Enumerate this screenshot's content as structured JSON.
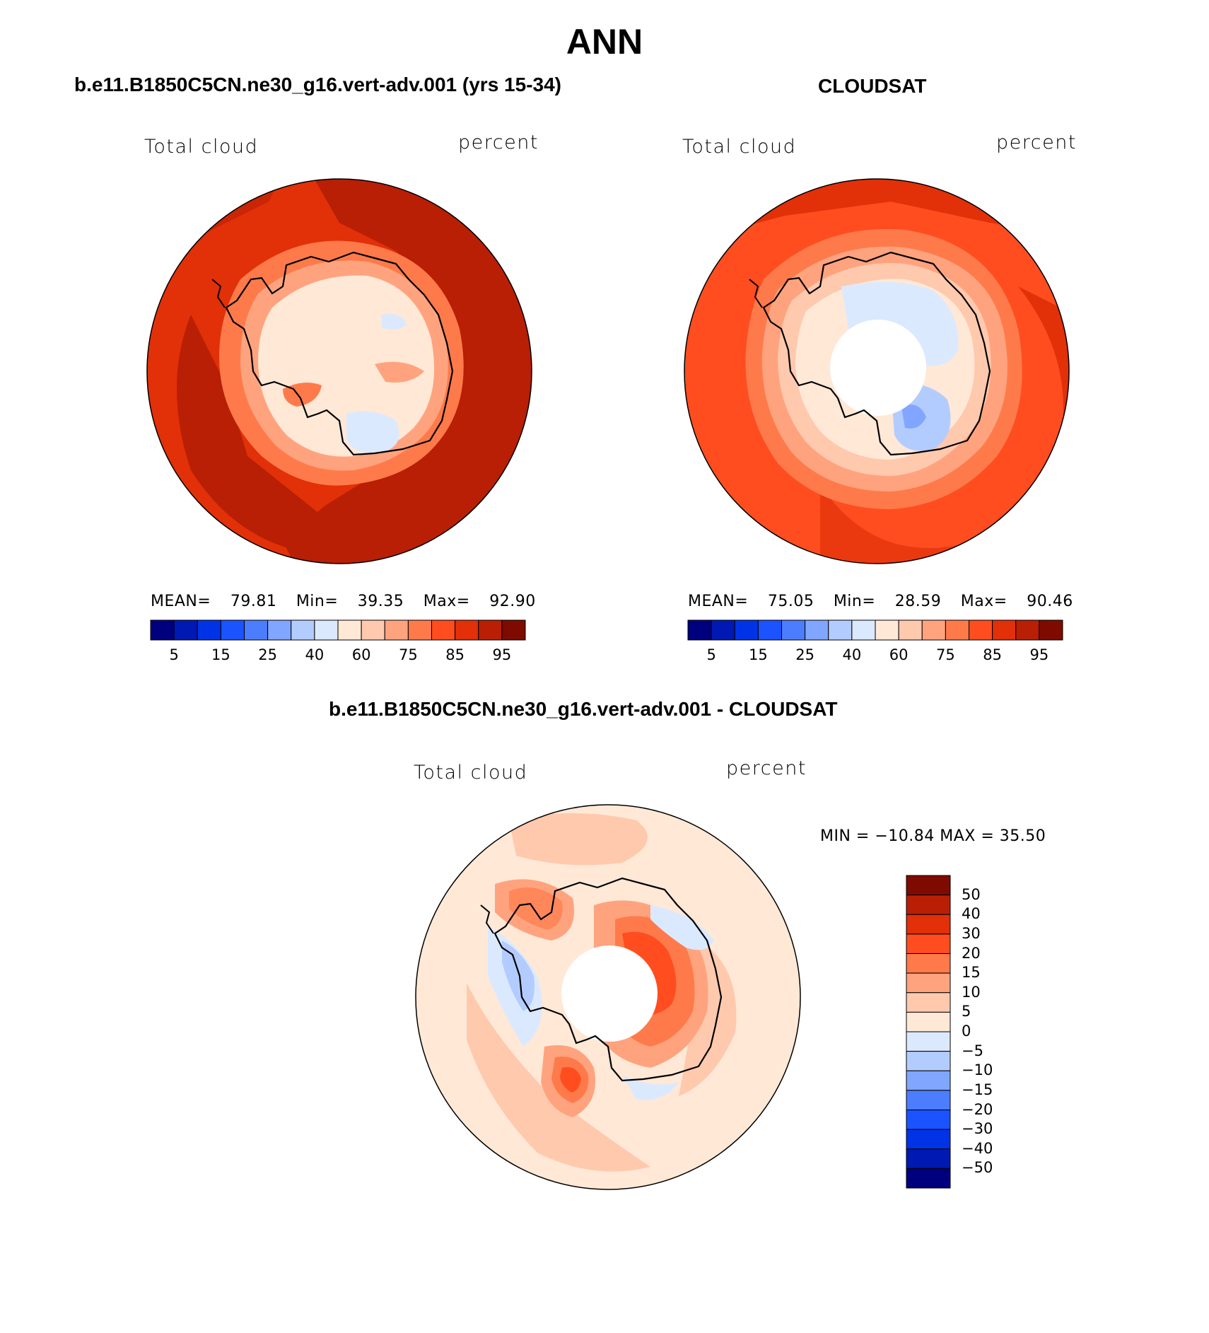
{
  "main_title": "ANN",
  "panels": {
    "model": {
      "title": "b.e11.B1850C5CN.ne30_g16.vert-adv.001 (yrs 15-34)",
      "left_label": "Total cloud",
      "right_label": "percent",
      "stats": {
        "mean_label": "MEAN=",
        "mean": "79.81",
        "min_label": "Min=",
        "min": "39.35",
        "max_label": "Max=",
        "max": "92.90"
      }
    },
    "obs": {
      "title": "CLOUDSAT",
      "left_label": "Total cloud",
      "right_label": "percent",
      "stats": {
        "mean_label": "MEAN=",
        "mean": "75.05",
        "min_label": "Min=",
        "min": "28.59",
        "max_label": "Max=",
        "max": "90.46"
      }
    },
    "diff": {
      "title": "b.e11.B1850C5CN.ne30_g16.vert-adv.001 - CLOUDSAT",
      "left_label": "Total cloud",
      "right_label": "percent",
      "minmax": "MIN = −10.84  MAX =   35.50"
    }
  },
  "colorbar_abs": {
    "colors": [
      "#00007f",
      "#0019b3",
      "#0033e6",
      "#1a53ff",
      "#4d7dff",
      "#80a6ff",
      "#b3ccff",
      "#dbe9ff",
      "#ffe8d6",
      "#ffc9ae",
      "#ffa37f",
      "#ff7a4a",
      "#ff4d1f",
      "#e23008",
      "#b81f04",
      "#7f0a00"
    ],
    "tick_labels": [
      "5",
      "15",
      "25",
      "40",
      "60",
      "75",
      "85",
      "95"
    ]
  },
  "colorbar_diff": {
    "colors": [
      "#7f0a00",
      "#b81f04",
      "#e23008",
      "#ff4d1f",
      "#ff7a4a",
      "#ffa37f",
      "#ffc9ae",
      "#ffe8d6",
      "#dbe9ff",
      "#b3ccff",
      "#80a6ff",
      "#4d7dff",
      "#1a53ff",
      "#0033e6",
      "#0019b3",
      "#00007f"
    ],
    "tick_labels": [
      "50",
      "40",
      "30",
      "20",
      "15",
      "10",
      "5",
      "0",
      "−5",
      "−10",
      "−15",
      "−20",
      "−30",
      "−40",
      "−50"
    ]
  }
}
